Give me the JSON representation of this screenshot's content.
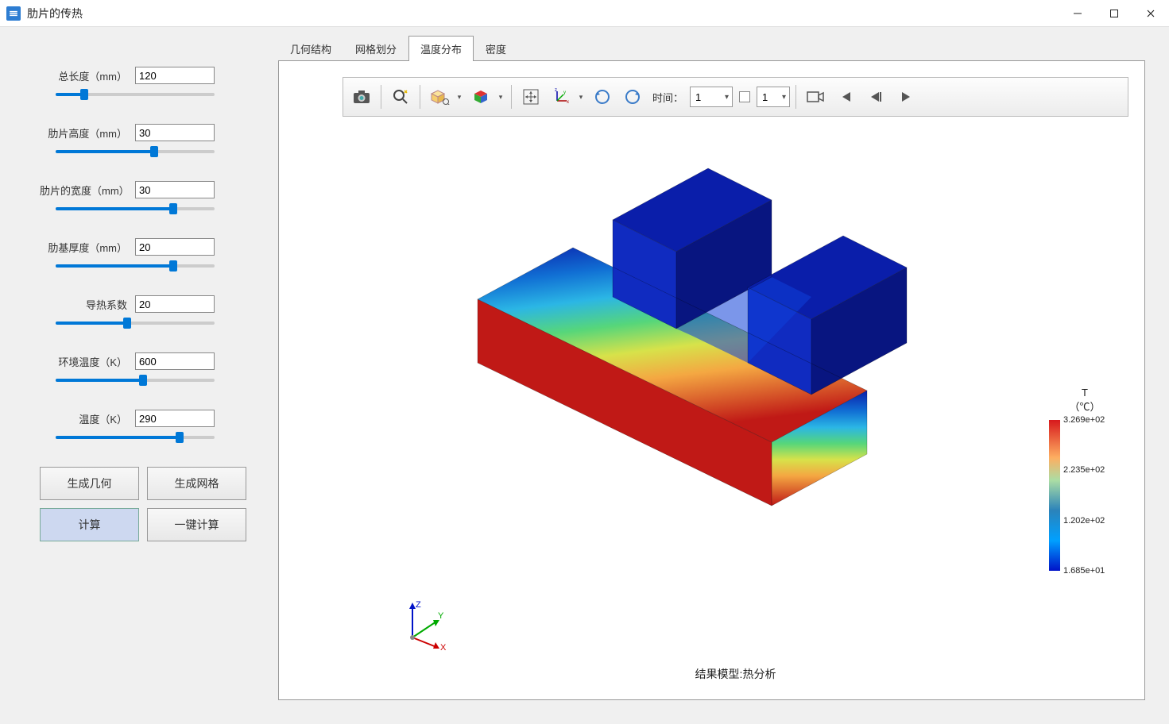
{
  "window": {
    "title": "肋片的传热"
  },
  "params": [
    {
      "label": "总长度（mm）",
      "value": "120",
      "fill_pct": 18
    },
    {
      "label": "肋片高度（mm）",
      "value": "30",
      "fill_pct": 62
    },
    {
      "label": "肋片的宽度（mm）",
      "value": "30",
      "fill_pct": 74
    },
    {
      "label": "肋基厚度（mm）",
      "value": "20",
      "fill_pct": 74
    },
    {
      "label": "导热系数",
      "value": "20",
      "fill_pct": 45
    },
    {
      "label": "环境温度（K）",
      "value": "600",
      "fill_pct": 55
    },
    {
      "label": "温度（K）",
      "value": "290",
      "fill_pct": 78
    }
  ],
  "buttons": {
    "gen_geom": "生成几何",
    "gen_mesh": "生成网格",
    "compute": "计算",
    "one_click": "一键计算"
  },
  "tabs": [
    "几何结构",
    "网格划分",
    "温度分布",
    "密度"
  ],
  "active_tab_index": 2,
  "toolbar": {
    "time_label": "时间：",
    "time_value": "1",
    "frame_value": "1"
  },
  "result_label": "结果模型:热分析",
  "legend": {
    "title": "T",
    "unit": "（℃）",
    "ticks": [
      {
        "label": "3.269e+02",
        "pos_pct": 0
      },
      {
        "label": "2.235e+02",
        "pos_pct": 33
      },
      {
        "label": "1.202e+02",
        "pos_pct": 67
      },
      {
        "label": "1.685e+01",
        "pos_pct": 100
      }
    ]
  },
  "triad": {
    "x_label": "X",
    "y_label": "Y",
    "z_label": "Z"
  },
  "colors": {
    "hot": "#c01916",
    "warm": "#f4a742",
    "mid": "#a8d96a",
    "cool": "#2b83ba",
    "cold": "#0a1eaa"
  }
}
